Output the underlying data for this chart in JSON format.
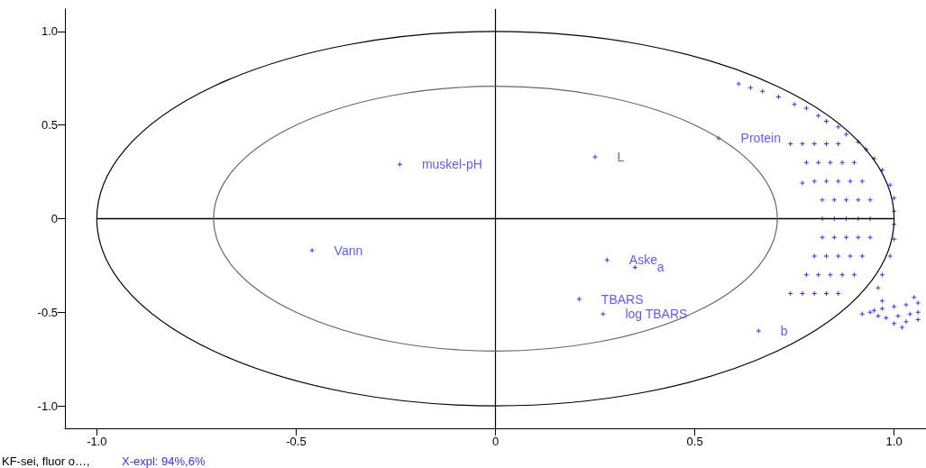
{
  "chart_data": {
    "type": "scatter",
    "xlim": [
      -1.08,
      1.08
    ],
    "ylim": [
      -1.12,
      1.12
    ],
    "xticks": [
      {
        "value": -1,
        "label": "-1.0"
      },
      {
        "value": -0.5,
        "label": "-0.5"
      },
      0,
      {
        "value": 0.5,
        "label": "0.5"
      },
      {
        "value": 1,
        "label": "1.0"
      }
    ],
    "yticks": [
      {
        "value": -1,
        "label": "-1.0"
      },
      {
        "value": -0.5,
        "label": "-0.5"
      },
      0,
      {
        "value": 0.5,
        "label": "0.5"
      },
      {
        "value": 1,
        "label": "1.0"
      }
    ],
    "grid": false,
    "legend": false,
    "marker": "cross",
    "ref_lines": [
      {
        "axis": "x",
        "value": 0,
        "color": "#000000"
      }
    ],
    "annotations": [
      "KF-sei, fluor o…,",
      "X-expl: 94%,6%"
    ],
    "series": [
      {
        "type": "line",
        "color": "#000000",
        "marker": "none",
        "x": [
          -1,
          1
        ],
        "values": [
          0,
          0
        ]
      },
      {
        "name": "muskel-pH",
        "color": "#0000ff",
        "x": [
          -0.24
        ],
        "values": [
          0.29
        ]
      },
      {
        "name": "L",
        "color": "#0000ff",
        "x": [
          0.25
        ],
        "values": [
          0.33
        ]
      },
      {
        "name": "Protein",
        "color": "#0000ff",
        "x": [
          0.56
        ],
        "values": [
          0.43
        ]
      },
      {
        "name": "Vann",
        "color": "#0000ff",
        "x": [
          -0.46
        ],
        "values": [
          -0.17
        ]
      },
      {
        "name": "Aske",
        "color": "#0000ff",
        "x": [
          0.28
        ],
        "values": [
          -0.22
        ]
      },
      {
        "name": "a",
        "color": "#0000ff",
        "x": [
          0.35
        ],
        "values": [
          -0.26
        ]
      },
      {
        "name": "TBARS",
        "color": "#0000ff",
        "x": [
          0.21
        ],
        "values": [
          -0.43
        ]
      },
      {
        "name": "log TBARS",
        "color": "#0000ff",
        "x": [
          0.27
        ],
        "values": [
          -0.51
        ]
      },
      {
        "name": "b",
        "color": "#0000ff",
        "x": [
          0.66
        ],
        "values": [
          -0.6
        ]
      },
      {
        "color": "#0000ff",
        "x": [
          0.61,
          0.64,
          0.67,
          0.71,
          0.75,
          0.78,
          0.81,
          0.83,
          0.86,
          0.88,
          0.91,
          0.93,
          0.95,
          0.97,
          0.99,
          1,
          1,
          1,
          1,
          0.99,
          0.97,
          0.96,
          0.77,
          0.74,
          0.78,
          0.8,
          0.82,
          0.82,
          0.82,
          0.8,
          0.78,
          0.74,
          0.77,
          0.81,
          0.83,
          0.85,
          0.85,
          0.85,
          0.83,
          0.81,
          0.77,
          0.8,
          0.84,
          0.86,
          0.88,
          0.88,
          0.88,
          0.86,
          0.84,
          0.8,
          0.83,
          0.87,
          0.89,
          0.91,
          0.91,
          0.91,
          0.89,
          0.87,
          0.83,
          0.86,
          0.9,
          0.92,
          0.94,
          0.94,
          0.94,
          0.92,
          0.9,
          0.86,
          0.92,
          0.95,
          0.97,
          1,
          1.03,
          1.06,
          0.98,
          1.01,
          1.04,
          1.06,
          1,
          1.03,
          1.06,
          0.96,
          1.02,
          0.94,
          0.97,
          1.05
        ],
        "values": [
          0.72,
          0.7,
          0.68,
          0.65,
          0.61,
          0.59,
          0.55,
          0.52,
          0.49,
          0.45,
          0.41,
          0.37,
          0.32,
          0.26,
          0.18,
          0.11,
          0.04,
          -0.03,
          -0.11,
          -0.2,
          -0.3,
          -0.37,
          0.19,
          0.4,
          0.3,
          0.2,
          0.1,
          0,
          -0.1,
          -0.2,
          -0.3,
          -0.4,
          0.4,
          0.3,
          0.2,
          0.1,
          0,
          -0.1,
          -0.2,
          -0.3,
          -0.4,
          0.4,
          0.3,
          0.2,
          0.1,
          0,
          -0.1,
          -0.2,
          -0.3,
          -0.4,
          0.4,
          0.3,
          0.2,
          0.1,
          0,
          -0.1,
          -0.2,
          -0.3,
          -0.4,
          0.4,
          0.3,
          0.2,
          0.1,
          0,
          -0.1,
          -0.2,
          -0.3,
          -0.4,
          -0.51,
          -0.49,
          -0.48,
          -0.47,
          -0.46,
          -0.45,
          -0.53,
          -0.52,
          -0.51,
          -0.5,
          -0.56,
          -0.55,
          -0.54,
          -0.52,
          -0.58,
          -0.5,
          -0.44,
          -0.42
        ]
      }
    ]
  }
}
